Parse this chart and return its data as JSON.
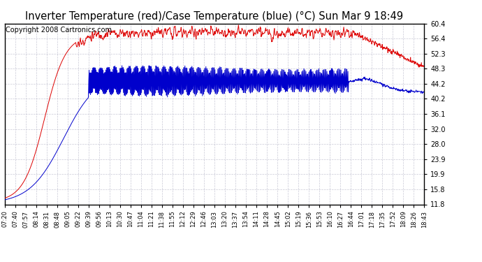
{
  "title": "Inverter Temperature (red)/Case Temperature (blue) (°C) Sun Mar 9 18:49",
  "copyright": "Copyright 2008 Cartronics.com",
  "y_ticks": [
    11.8,
    15.8,
    19.9,
    23.9,
    28.0,
    32.0,
    36.1,
    40.2,
    44.2,
    48.3,
    52.3,
    56.4,
    60.4
  ],
  "y_min": 11.8,
  "y_max": 60.4,
  "x_labels": [
    "07:20",
    "07:40",
    "07:57",
    "08:14",
    "08:31",
    "08:48",
    "09:05",
    "09:22",
    "09:39",
    "09:56",
    "10:13",
    "10:30",
    "10:47",
    "11:04",
    "11:21",
    "11:38",
    "11:55",
    "12:12",
    "12:29",
    "12:46",
    "13:03",
    "13:20",
    "13:37",
    "13:54",
    "14:11",
    "14:28",
    "14:45",
    "15:02",
    "15:19",
    "15:36",
    "15:53",
    "16:10",
    "16:27",
    "16:44",
    "17:01",
    "17:18",
    "17:35",
    "17:52",
    "18:09",
    "18:26",
    "18:43"
  ],
  "bg_color": "#ffffff",
  "grid_color": "#bbbbcc",
  "red_color": "#dd0000",
  "blue_color": "#0000cc",
  "title_fontsize": 10.5,
  "copyright_fontsize": 7,
  "linewidth": 0.7
}
